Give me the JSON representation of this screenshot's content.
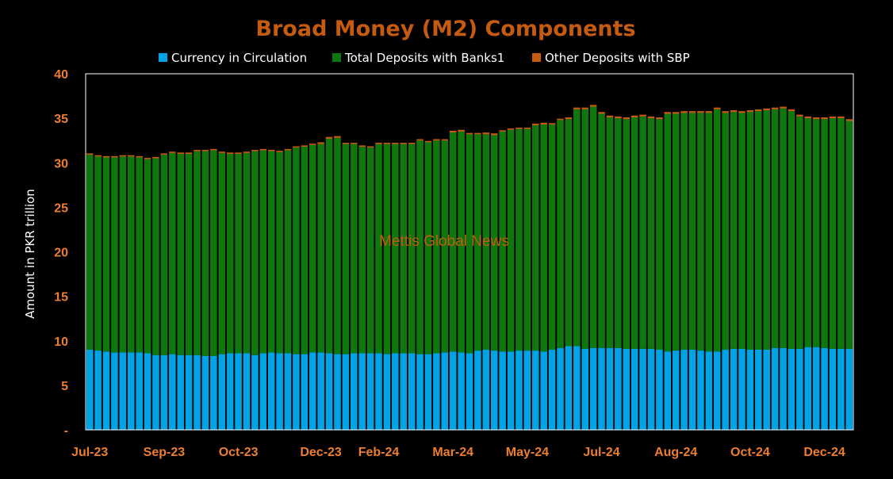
{
  "colors": {
    "background": "#000000",
    "title": "#C55A11",
    "tick": "#ED7D31",
    "currency": "#00A3E6",
    "deposits": "#0E780E",
    "other": "#C55A11",
    "watermark": "#C55A11",
    "plot_border": "#FFFFFF"
  },
  "chart_data": {
    "type": "bar",
    "stacked": true,
    "title": "Broad Money (M2) Components",
    "xlabel": "",
    "ylabel": "Amount in PKR trillion",
    "ylim": [
      0,
      40
    ],
    "y_ticks": [
      {
        "value": 0,
        "label": "-"
      },
      {
        "value": 5,
        "label": "5"
      },
      {
        "value": 10,
        "label": "10"
      },
      {
        "value": 15,
        "label": "15"
      },
      {
        "value": 20,
        "label": "20"
      },
      {
        "value": 25,
        "label": "25"
      },
      {
        "value": 30,
        "label": "30"
      },
      {
        "value": 35,
        "label": "35"
      },
      {
        "value": 40,
        "label": "40"
      }
    ],
    "x_tick_labels": [
      {
        "index": 0,
        "label": "Jul-23"
      },
      {
        "index": 9,
        "label": "Sep-23"
      },
      {
        "index": 18,
        "label": "Oct-23"
      },
      {
        "index": 28,
        "label": "Dec-23"
      },
      {
        "index": 35,
        "label": "Feb-24"
      },
      {
        "index": 44,
        "label": "Mar-24"
      },
      {
        "index": 53,
        "label": "May-24"
      },
      {
        "index": 62,
        "label": "Jul-24"
      },
      {
        "index": 71,
        "label": "Aug-24"
      },
      {
        "index": 80,
        "label": "Oct-24"
      },
      {
        "index": 89,
        "label": "Dec-24"
      }
    ],
    "legend_position": "top-center",
    "grid": false,
    "watermark": "Mettis Global News",
    "series": [
      {
        "name": "Currency in Circulation",
        "color_key": "currency",
        "values": [
          9.0,
          8.9,
          8.8,
          8.7,
          8.7,
          8.7,
          8.7,
          8.6,
          8.4,
          8.4,
          8.5,
          8.4,
          8.4,
          8.4,
          8.3,
          8.3,
          8.5,
          8.6,
          8.6,
          8.6,
          8.4,
          8.6,
          8.7,
          8.6,
          8.6,
          8.5,
          8.5,
          8.7,
          8.7,
          8.6,
          8.5,
          8.5,
          8.6,
          8.6,
          8.6,
          8.6,
          8.5,
          8.6,
          8.6,
          8.6,
          8.5,
          8.5,
          8.6,
          8.7,
          8.8,
          8.7,
          8.6,
          8.9,
          9.0,
          8.9,
          8.8,
          8.8,
          8.9,
          8.9,
          8.9,
          8.8,
          9.0,
          9.2,
          9.4,
          9.4,
          9.1,
          9.2,
          9.2,
          9.2,
          9.2,
          9.1,
          9.1,
          9.1,
          9.1,
          9.0,
          8.8,
          8.9,
          9.0,
          9.0,
          8.9,
          8.8,
          8.8,
          9.0,
          9.1,
          9.1,
          9.0,
          9.0,
          9.0,
          9.2,
          9.2,
          9.1,
          9.1,
          9.3,
          9.3,
          9.2,
          9.1,
          9.1,
          9.1
        ]
      },
      {
        "name": "Total Deposits with Banks1",
        "color_key": "deposits",
        "values": [
          21.9,
          21.8,
          21.8,
          21.9,
          22.0,
          22.0,
          21.9,
          21.8,
          22.1,
          22.5,
          22.6,
          22.6,
          22.6,
          22.9,
          23.0,
          23.1,
          22.6,
          22.4,
          22.4,
          22.5,
          22.9,
          22.8,
          22.6,
          22.6,
          22.8,
          23.2,
          23.3,
          23.3,
          23.4,
          24.1,
          24.3,
          23.6,
          23.5,
          23.2,
          23.1,
          23.5,
          23.6,
          23.5,
          23.5,
          23.5,
          24.0,
          23.8,
          23.9,
          23.8,
          24.6,
          24.8,
          24.6,
          24.3,
          24.2,
          24.2,
          24.7,
          24.9,
          24.9,
          24.9,
          25.3,
          25.5,
          25.3,
          25.6,
          25.5,
          26.6,
          26.9,
          27.1,
          26.3,
          25.9,
          25.8,
          25.8,
          26.0,
          26.1,
          25.9,
          25.9,
          26.7,
          26.6,
          26.6,
          26.6,
          26.7,
          26.8,
          27.2,
          26.6,
          26.6,
          26.5,
          26.7,
          26.8,
          26.9,
          26.8,
          26.9,
          26.7,
          26.1,
          25.7,
          25.6,
          25.7,
          25.9,
          25.9,
          25.6
        ]
      },
      {
        "name": "Other Deposits with SBP",
        "color_key": "other",
        "values": [
          0.15,
          0.15,
          0.15,
          0.15,
          0.15,
          0.15,
          0.15,
          0.15,
          0.15,
          0.15,
          0.15,
          0.15,
          0.15,
          0.15,
          0.15,
          0.15,
          0.15,
          0.15,
          0.15,
          0.15,
          0.15,
          0.15,
          0.15,
          0.15,
          0.15,
          0.15,
          0.15,
          0.15,
          0.2,
          0.2,
          0.2,
          0.15,
          0.15,
          0.15,
          0.15,
          0.15,
          0.15,
          0.15,
          0.15,
          0.15,
          0.15,
          0.15,
          0.15,
          0.15,
          0.2,
          0.2,
          0.15,
          0.15,
          0.2,
          0.2,
          0.15,
          0.15,
          0.15,
          0.15,
          0.2,
          0.2,
          0.15,
          0.15,
          0.2,
          0.2,
          0.2,
          0.2,
          0.2,
          0.2,
          0.2,
          0.2,
          0.2,
          0.2,
          0.2,
          0.2,
          0.2,
          0.2,
          0.2,
          0.2,
          0.2,
          0.2,
          0.2,
          0.2,
          0.2,
          0.2,
          0.2,
          0.2,
          0.2,
          0.2,
          0.2,
          0.2,
          0.2,
          0.2,
          0.2,
          0.2,
          0.2,
          0.2,
          0.2
        ]
      }
    ]
  }
}
